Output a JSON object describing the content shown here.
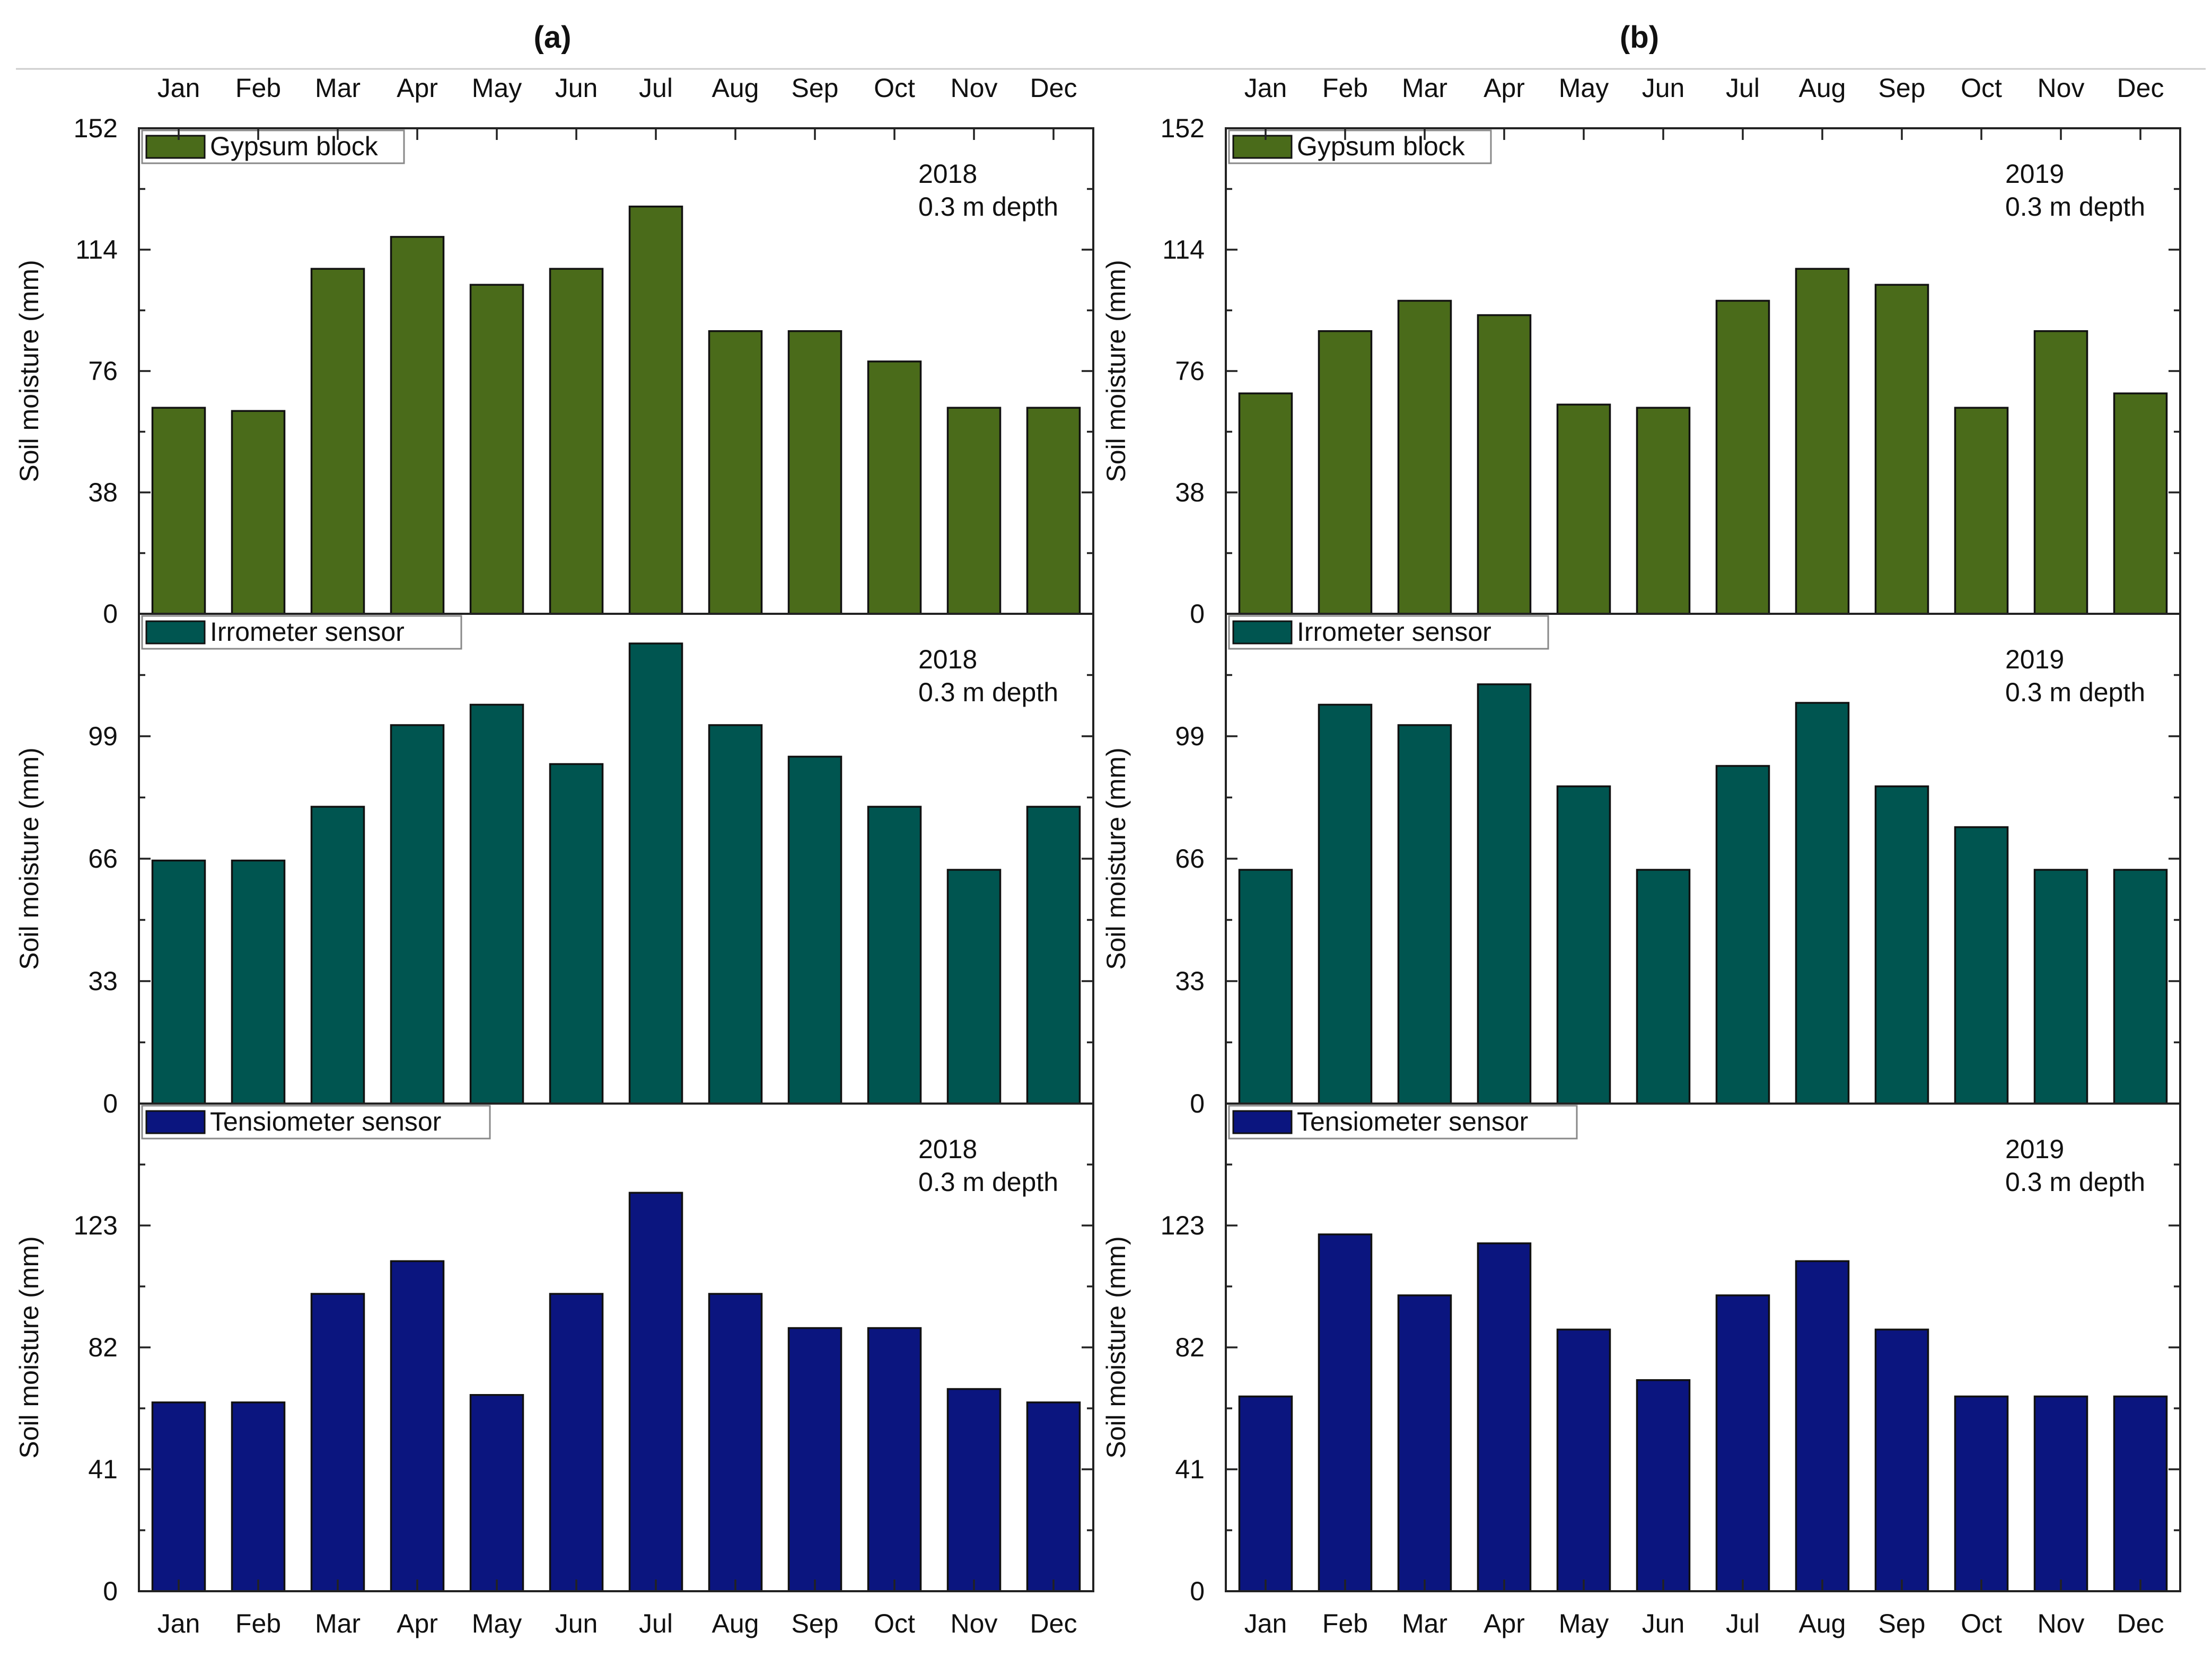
{
  "chart_data": [
    {
      "panel_label": "(a)",
      "year": "2018",
      "type": "bar",
      "categories": [
        "Jan",
        "Feb",
        "Mar",
        "Apr",
        "May",
        "Jun",
        "Jul",
        "Aug",
        "Sep",
        "Oct",
        "Nov",
        "Dec"
      ],
      "subplots": [
        {
          "name": "Gypsum block",
          "color": "#4a6b1a",
          "ylabel": "Soil moisture (mm)",
          "ylim": [
            0,
            152
          ],
          "yticks": [
            0,
            38,
            76,
            114,
            152
          ],
          "annotation": [
            "2018",
            "0.3 m depth"
          ],
          "values": [
            64.5,
            63.5,
            108,
            118,
            103,
            108,
            127.5,
            88.5,
            88.5,
            79,
            64.5,
            64.5
          ]
        },
        {
          "name": "Irrometer sensor",
          "color": "#005550",
          "ylabel": "Soil moisture (mm)",
          "ylim": [
            0,
            132
          ],
          "yticks": [
            0,
            33,
            66,
            99
          ],
          "annotation": [
            "2018",
            "0.3 m depth"
          ],
          "values": [
            65.5,
            65.5,
            80,
            102,
            107.5,
            91.5,
            124,
            102,
            93.5,
            80,
            63,
            80
          ]
        },
        {
          "name": "Tensiometer sensor",
          "color": "#0b157f",
          "ylabel": "Soil moisture (mm)",
          "ylim": [
            0,
            164
          ],
          "yticks": [
            0,
            41,
            82,
            123
          ],
          "annotation": [
            "2018",
            "0.3 m depth"
          ],
          "values": [
            63.5,
            63.5,
            100,
            111,
            66,
            100,
            134,
            100,
            88.5,
            88.5,
            68,
            63.5
          ]
        }
      ]
    },
    {
      "panel_label": "(b)",
      "year": "2019",
      "type": "bar",
      "categories": [
        "Jan",
        "Feb",
        "Mar",
        "Apr",
        "May",
        "Jun",
        "Jul",
        "Aug",
        "Sep",
        "Oct",
        "Nov",
        "Dec"
      ],
      "subplots": [
        {
          "name": "Gypsum block",
          "color": "#4a6b1a",
          "ylabel": "Soil moisture (mm)",
          "ylim": [
            0,
            152
          ],
          "yticks": [
            0,
            38,
            76,
            114,
            152
          ],
          "annotation": [
            "2019",
            "0.3 m depth"
          ],
          "values": [
            69,
            88.5,
            98,
            93.5,
            65.5,
            64.5,
            98,
            108,
            103,
            64.5,
            88.5,
            69
          ]
        },
        {
          "name": "Irrometer sensor",
          "color": "#005550",
          "ylabel": "Soil moisture (mm)",
          "ylim": [
            0,
            132
          ],
          "yticks": [
            0,
            33,
            66,
            99
          ],
          "annotation": [
            "2019",
            "0.3 m depth"
          ],
          "values": [
            63,
            107.5,
            102,
            113,
            85.5,
            63,
            91,
            108,
            85.5,
            74.5,
            63,
            63
          ]
        },
        {
          "name": "Tensiometer sensor",
          "color": "#0b157f",
          "ylabel": "Soil moisture (mm)",
          "ylim": [
            0,
            164
          ],
          "yticks": [
            0,
            41,
            82,
            123
          ],
          "annotation": [
            "2019",
            "0.3 m depth"
          ],
          "values": [
            65.5,
            120,
            99.5,
            117,
            88,
            71,
            99.5,
            111,
            88,
            65.5,
            65.5,
            65.5
          ]
        }
      ]
    }
  ]
}
